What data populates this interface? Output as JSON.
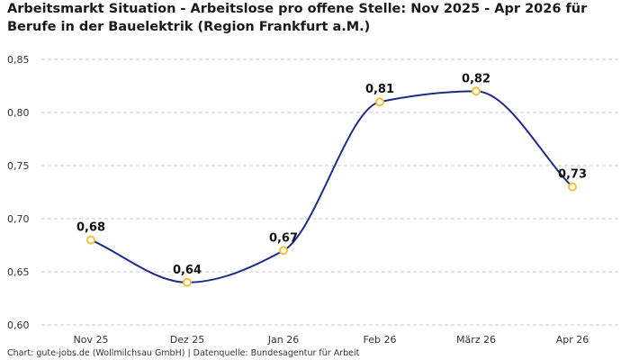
{
  "colors": {
    "line": "#1f2a8c",
    "marker_stroke": "#f2c230",
    "marker_fill": "#ffffff",
    "grid": "#c8c8c8"
  },
  "chart_data": {
    "type": "line",
    "title": "Arbeitsmarkt Situation - Arbeitslose pro offene Stelle: Nov 2025 - Apr 2026 für",
    "subtitle": "Berufe in der Bauelektrik (Region Frankfurt a.M.)",
    "categories": [
      "Nov 25",
      "Dez 25",
      "Jan 26",
      "Feb 26",
      "März 26",
      "Apr 26"
    ],
    "values": [
      0.68,
      0.64,
      0.67,
      0.81,
      0.82,
      0.73
    ],
    "value_labels": [
      "0,68",
      "0,64",
      "0,67",
      "0,81",
      "0,82",
      "0,73"
    ],
    "y_ticks": [
      0.6,
      0.65,
      0.7,
      0.75,
      0.8,
      0.85
    ],
    "y_tick_labels": [
      "0,60",
      "0,65",
      "0,70",
      "0,75",
      "0,80",
      "0,85"
    ],
    "ylim": [
      0.6,
      0.85
    ],
    "grid": true,
    "grid_style": "dashed-horizontal",
    "smooth": true,
    "legend": "none",
    "xlabel": "",
    "ylabel": ""
  },
  "footer": {
    "source": "Chart: gute-jobs.de (Wollmilchsau GmbH) | Datenquelle: Bundesagentur für Arbeit"
  }
}
